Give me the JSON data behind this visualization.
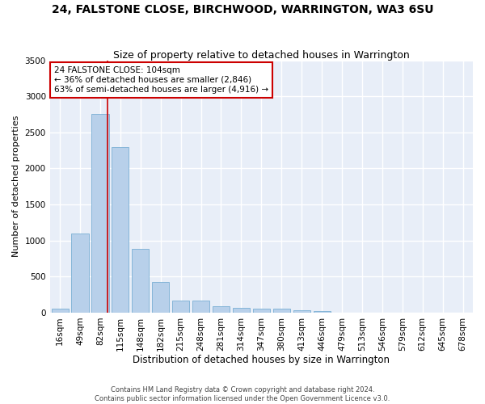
{
  "title": "24, FALSTONE CLOSE, BIRCHWOOD, WARRINGTON, WA3 6SU",
  "subtitle": "Size of property relative to detached houses in Warrington",
  "xlabel": "Distribution of detached houses by size in Warrington",
  "ylabel": "Number of detached properties",
  "categories": [
    "16sqm",
    "49sqm",
    "82sqm",
    "115sqm",
    "148sqm",
    "182sqm",
    "215sqm",
    "248sqm",
    "281sqm",
    "314sqm",
    "347sqm",
    "380sqm",
    "413sqm",
    "446sqm",
    "479sqm",
    "513sqm",
    "546sqm",
    "579sqm",
    "612sqm",
    "645sqm",
    "678sqm"
  ],
  "values": [
    50,
    1100,
    2750,
    2300,
    880,
    430,
    170,
    170,
    90,
    65,
    50,
    50,
    30,
    25,
    0,
    0,
    0,
    0,
    0,
    0,
    0
  ],
  "bar_color": "#b8d0ea",
  "bar_edge_color": "#7aafd4",
  "background_color": "#e8eef8",
  "fig_color": "#ffffff",
  "grid_color": "#ffffff",
  "ylim": [
    0,
    3500
  ],
  "yticks": [
    0,
    500,
    1000,
    1500,
    2000,
    2500,
    3000,
    3500
  ],
  "vline_x": 2.35,
  "vline_color": "#cc0000",
  "annotation_text": "24 FALSTONE CLOSE: 104sqm\n← 36% of detached houses are smaller (2,846)\n63% of semi-detached houses are larger (4,916) →",
  "annotation_box_color": "#cc0000",
  "footer_line1": "Contains HM Land Registry data © Crown copyright and database right 2024.",
  "footer_line2": "Contains public sector information licensed under the Open Government Licence v3.0.",
  "title_fontsize": 10,
  "subtitle_fontsize": 9,
  "xlabel_fontsize": 8.5,
  "ylabel_fontsize": 8,
  "tick_fontsize": 7.5,
  "annotation_fontsize": 7.5,
  "footer_fontsize": 6
}
